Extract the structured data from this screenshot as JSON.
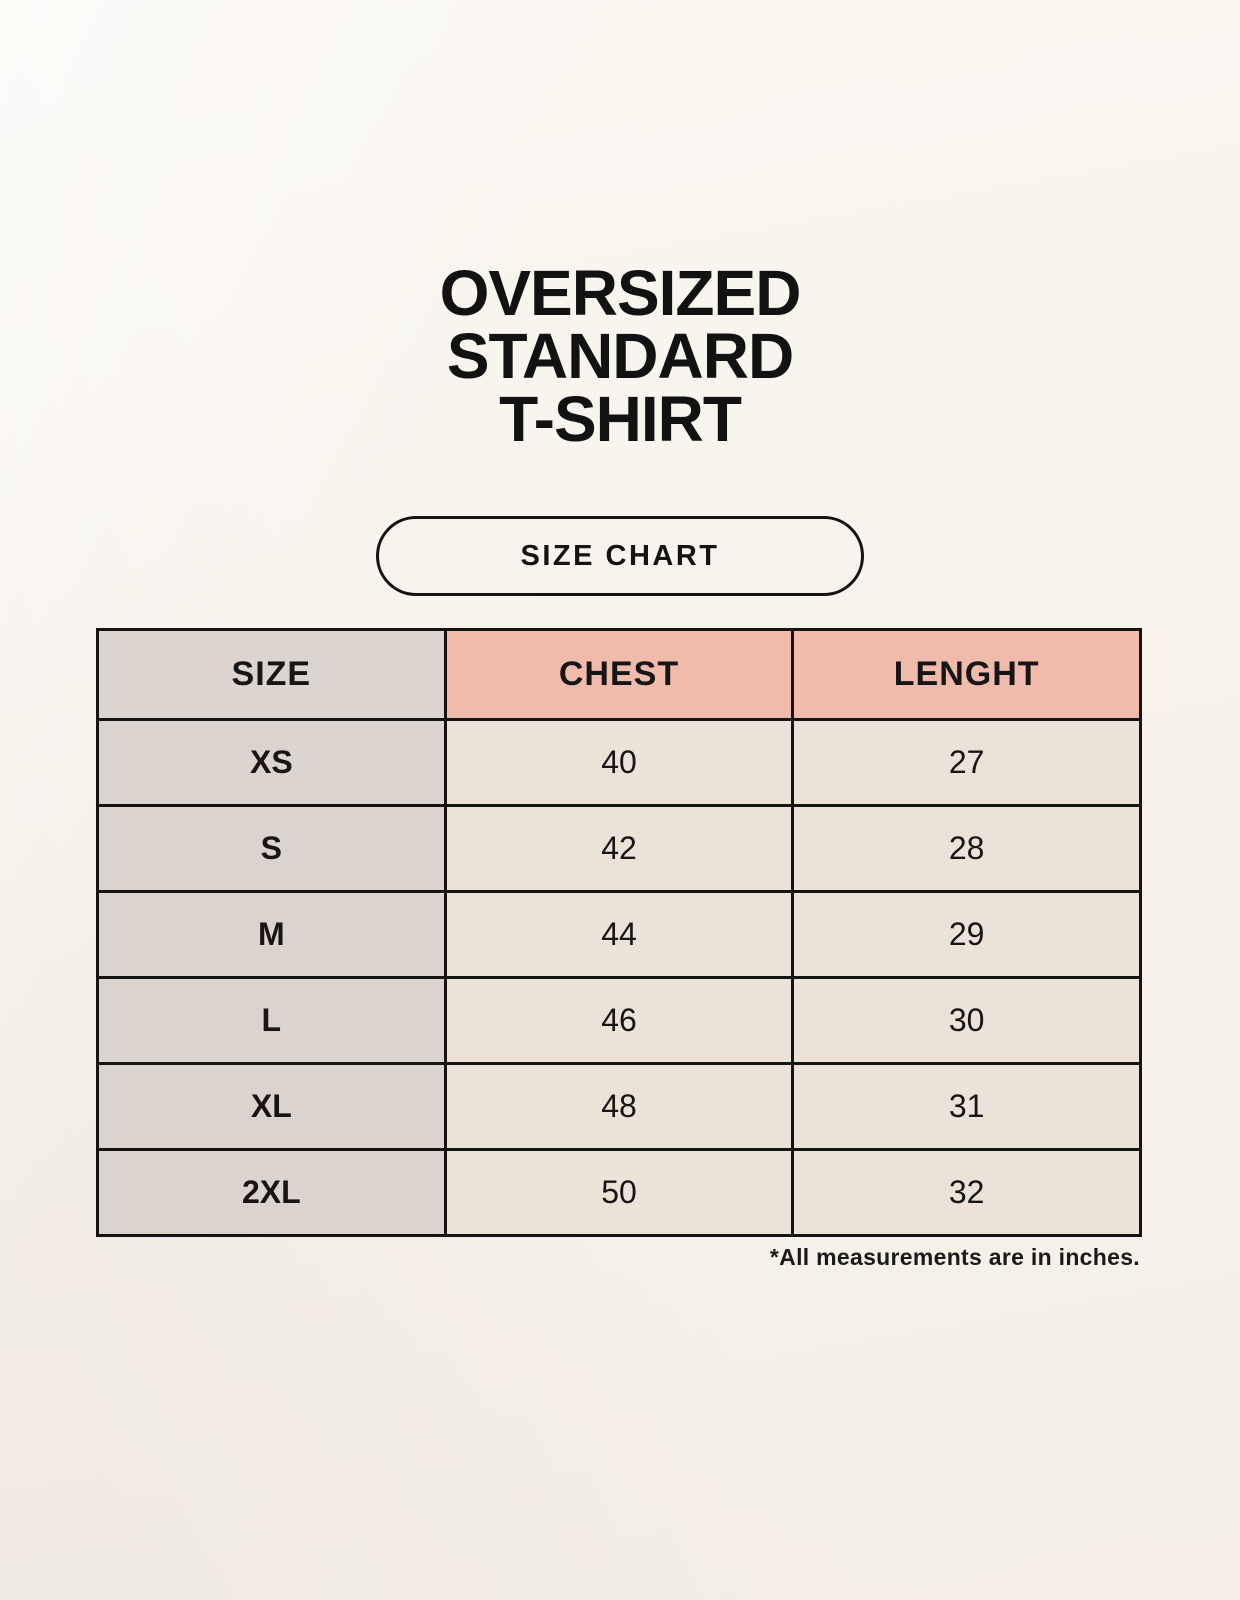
{
  "title": {
    "lines": [
      "OVERSIZED",
      "STANDARD",
      "T-SHIRT"
    ]
  },
  "size_chart_button": {
    "label": "SIZE CHART"
  },
  "table": {
    "headers": [
      {
        "label": "SIZE"
      },
      {
        "label": "CHEST"
      },
      {
        "label": "LENGHT"
      }
    ],
    "rows": [
      {
        "size": "XS",
        "chest": "40",
        "length": "27"
      },
      {
        "size": "S",
        "chest": "42",
        "length": "28"
      },
      {
        "size": "M",
        "chest": "44",
        "length": "29"
      },
      {
        "size": "L",
        "chest": "46",
        "length": "30"
      },
      {
        "size": "XL",
        "chest": "48",
        "length": "31"
      },
      {
        "size": "2XL",
        "chest": "50",
        "length": "32"
      }
    ]
  },
  "footnote": "*All measurements are in inches.",
  "colors": {
    "background": "#f7f2ea",
    "header_pink": "#f0bbaa",
    "header_gray": "#dcd4cf",
    "row_label_gray": "#dbd3ce",
    "cell_cream": "#ebe3d8",
    "border_black": "#141414"
  }
}
